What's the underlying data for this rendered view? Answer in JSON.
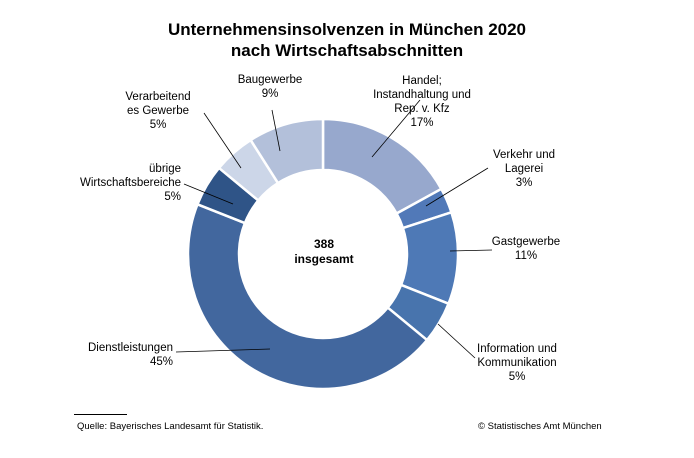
{
  "chart_data": {
    "type": "pie",
    "subtype": "donut",
    "title_lines": [
      "Unternehmensinsolvenzen in München 2020",
      "nach Wirtschaftsabschnitten"
    ],
    "center_label": [
      "388",
      "insgesamt"
    ],
    "total": 388,
    "unit": "%",
    "slices": [
      {
        "name": "Handel; Instandhaltung und Rep. v. Kfz",
        "label_lines": [
          "Handel;",
          "Instandhaltung und",
          "Rep. v. Kfz"
        ],
        "value": 17,
        "value_label": "17%",
        "color": "#97a8cd"
      },
      {
        "name": "Verkehr und Lagerei",
        "label_lines": [
          "Verkehr und",
          "Lagerei"
        ],
        "value": 3,
        "value_label": "3%",
        "color": "#5179b8"
      },
      {
        "name": "Gastgewerbe",
        "label_lines": [
          "Gastgewerbe"
        ],
        "value": 11,
        "value_label": "11%",
        "color": "#4e79b6"
      },
      {
        "name": "Information und Kommunikation",
        "label_lines": [
          "Information und",
          "Kommunikation"
        ],
        "value": 5,
        "value_label": "5%",
        "color": "#4874ad"
      },
      {
        "name": "Dienstleistungen",
        "label_lines": [
          "Dienstleistungen"
        ],
        "value": 45,
        "value_label": "45%",
        "color": "#42679e"
      },
      {
        "name": "übrige Wirtschaftsbereiche",
        "label_lines": [
          "übrige",
          "Wirtschaftsbereiche"
        ],
        "value": 5,
        "value_label": "5%",
        "color": "#2f5487"
      },
      {
        "name": "Verarbeitendes Gewerbe",
        "label_lines": [
          "Verarbeitend",
          "es Gewerbe"
        ],
        "value": 5,
        "value_label": "5%",
        "color": "#ccd6e8"
      },
      {
        "name": "Baugewerbe",
        "label_lines": [
          "Baugewerbe"
        ],
        "value": 9,
        "value_label": "9%",
        "color": "#b3c0da"
      }
    ]
  },
  "footer": {
    "source": "Quelle: Bayerisches Landesamt für Statistik.",
    "copyright": "© Statistisches Amt München"
  }
}
